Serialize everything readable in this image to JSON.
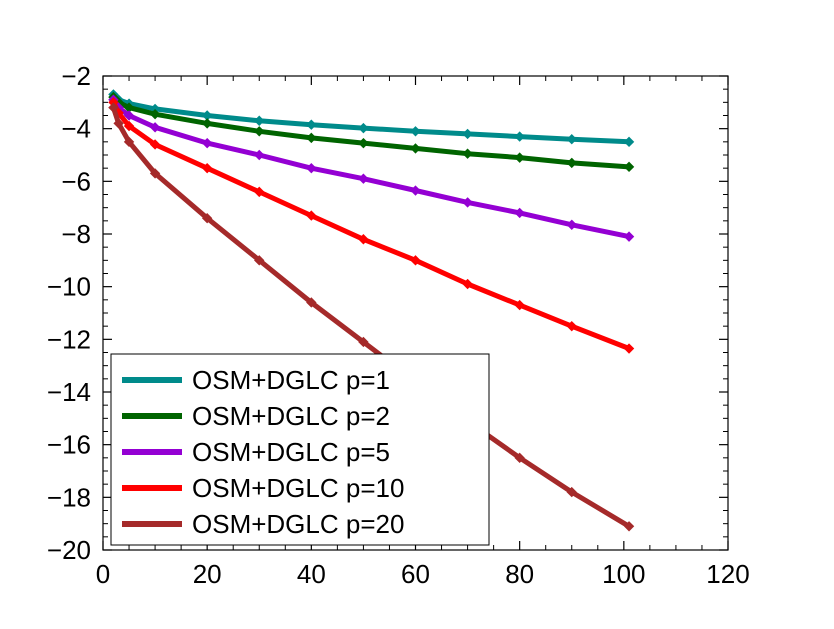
{
  "chart_data": {
    "type": "line",
    "title": "",
    "xlabel": "",
    "ylabel": "",
    "xlim": [
      0,
      120
    ],
    "ylim": [
      -20,
      -2
    ],
    "x_ticks": [
      0,
      20,
      40,
      60,
      80,
      100,
      120
    ],
    "y_ticks": [
      -2,
      -4,
      -6,
      -8,
      -10,
      -12,
      -14,
      -16,
      -18,
      -20
    ],
    "grid": false,
    "legend_position": "bottom-left",
    "series": [
      {
        "name": "OSM+DGLC p=1",
        "color": "#008b8b",
        "x": [
          2,
          3,
          5,
          10,
          20,
          30,
          40,
          50,
          60,
          70,
          80,
          90,
          101
        ],
        "y": [
          -2.7,
          -2.9,
          -3.05,
          -3.25,
          -3.5,
          -3.7,
          -3.85,
          -3.98,
          -4.1,
          -4.2,
          -4.3,
          -4.4,
          -4.5
        ]
      },
      {
        "name": "OSM+DGLC p=2",
        "color": "#006400",
        "x": [
          2,
          3,
          5,
          10,
          20,
          30,
          40,
          50,
          60,
          70,
          80,
          90,
          101
        ],
        "y": [
          -2.8,
          -3.0,
          -3.2,
          -3.45,
          -3.8,
          -4.1,
          -4.35,
          -4.55,
          -4.75,
          -4.95,
          -5.1,
          -5.3,
          -5.45
        ]
      },
      {
        "name": "OSM+DGLC p=5",
        "color": "#9400d3",
        "x": [
          2,
          3,
          5,
          10,
          20,
          30,
          40,
          50,
          60,
          70,
          80,
          90,
          101
        ],
        "y": [
          -2.9,
          -3.2,
          -3.5,
          -3.95,
          -4.55,
          -5.0,
          -5.5,
          -5.9,
          -6.35,
          -6.8,
          -7.2,
          -7.65,
          -8.1
        ]
      },
      {
        "name": "OSM+DGLC p=10",
        "color": "#ff0000",
        "x": [
          2,
          3,
          5,
          10,
          20,
          30,
          40,
          50,
          60,
          70,
          80,
          90,
          101
        ],
        "y": [
          -3.0,
          -3.4,
          -3.9,
          -4.6,
          -5.5,
          -6.4,
          -7.3,
          -8.2,
          -9.0,
          -9.9,
          -10.7,
          -11.5,
          -12.35
        ]
      },
      {
        "name": "OSM+DGLC p=20",
        "color": "#a52a2a",
        "x": [
          2,
          3,
          5,
          10,
          20,
          30,
          40,
          50,
          60,
          70,
          80,
          90,
          101
        ],
        "y": [
          -3.2,
          -3.8,
          -4.5,
          -5.7,
          -7.4,
          -9.0,
          -10.6,
          -12.1,
          -13.6,
          -15.1,
          -16.5,
          -17.8,
          -19.1
        ]
      }
    ]
  }
}
